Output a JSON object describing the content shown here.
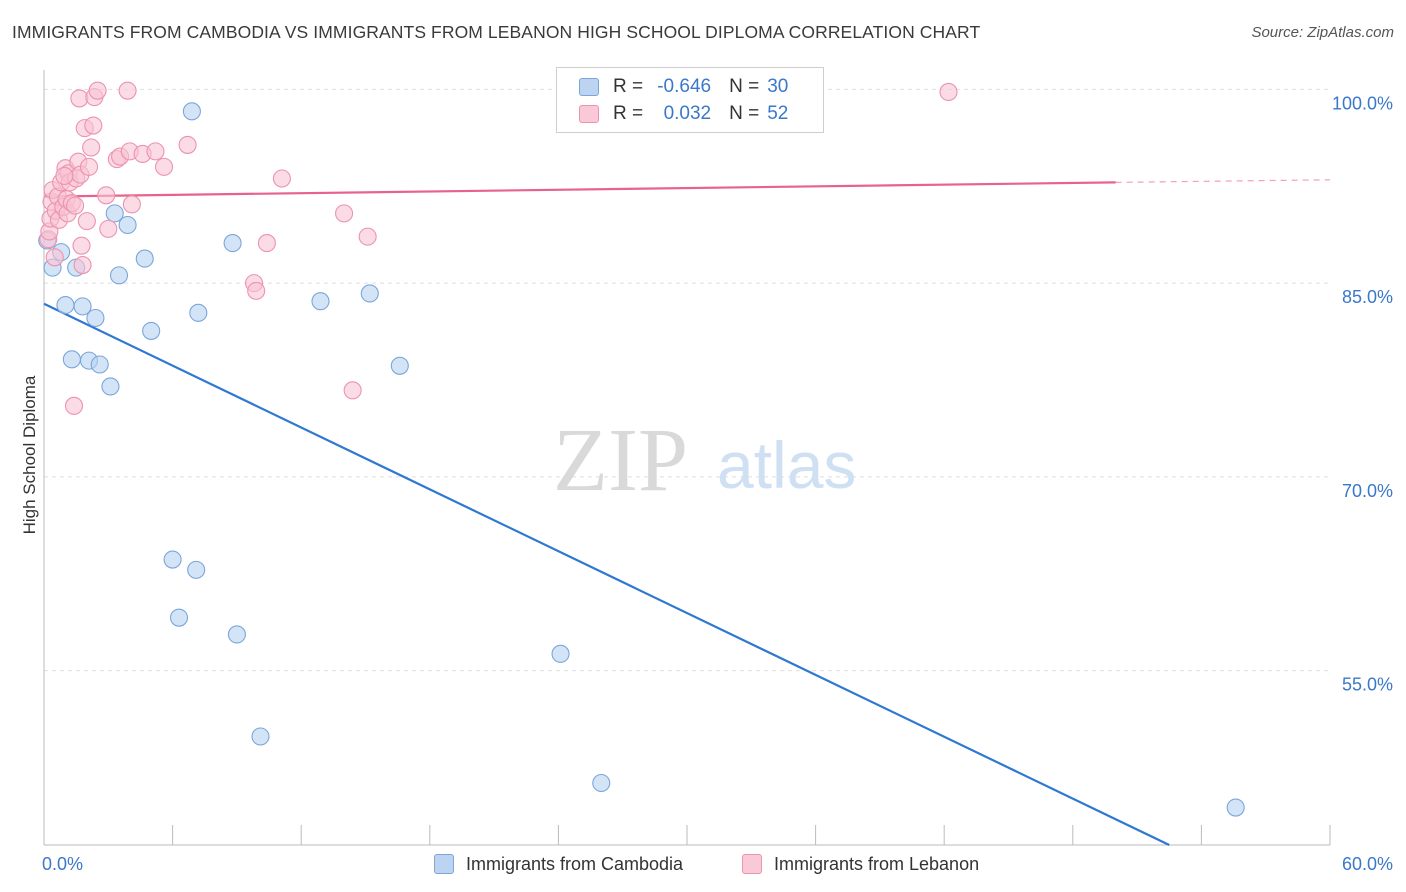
{
  "header": {
    "title": "IMMIGRANTS FROM CAMBODIA VS IMMIGRANTS FROM LEBANON HIGH SCHOOL DIPLOMA CORRELATION CHART",
    "source": "Source: ZipAtlas.com"
  },
  "watermark": {
    "zip": "ZIP",
    "atlas": "atlas"
  },
  "legend": {
    "rows": [
      {
        "r_label": "R =",
        "r_value": "-0.646",
        "n_label": "N =",
        "n_value": "30",
        "color": "#a9c8ef"
      },
      {
        "r_label": "R =",
        "r_value": "0.032",
        "n_label": "N =",
        "n_value": "52",
        "color": "#f6b8cb"
      }
    ]
  },
  "colors": {
    "blue_fill": "#b8d2f1",
    "blue_stroke": "#7aa6dc",
    "blue_line": "#2f78d1",
    "pink_fill": "#f8c3d3",
    "pink_stroke": "#ec93ae",
    "pink_line": "#e8638b",
    "axis_label": "#3a78c9",
    "grid": "#dedede"
  },
  "chart_data": {
    "type": "scatter",
    "title": "IMMIGRANTS FROM CAMBODIA VS IMMIGRANTS FROM LEBANON HIGH SCHOOL DIPLOMA CORRELATION CHART",
    "xlabel": "",
    "ylabel": "High School Diploma",
    "xlim": [
      0,
      60
    ],
    "ylim": [
      41.5,
      101.5
    ],
    "x_tick_labels": [
      "0.0%",
      "60.0%"
    ],
    "y_ticks": [
      55,
      70,
      85,
      100
    ],
    "y_tick_labels": [
      "55.0%",
      "70.0%",
      "85.0%",
      "100.0%"
    ],
    "grid": true,
    "legend_position": "bottom",
    "series": [
      {
        "name": "Immigrants from Cambodia",
        "color": "#7aa6dc",
        "points": [
          {
            "x": 0.15,
            "y": 88.3
          },
          {
            "x": 0.4,
            "y": 86.2
          },
          {
            "x": 0.8,
            "y": 87.4
          },
          {
            "x": 1.0,
            "y": 83.3
          },
          {
            "x": 1.3,
            "y": 79.1
          },
          {
            "x": 1.5,
            "y": 86.2
          },
          {
            "x": 1.8,
            "y": 83.2
          },
          {
            "x": 2.1,
            "y": 79.0
          },
          {
            "x": 2.4,
            "y": 82.3
          },
          {
            "x": 2.6,
            "y": 78.7
          },
          {
            "x": 3.1,
            "y": 77.0
          },
          {
            "x": 3.3,
            "y": 90.4
          },
          {
            "x": 3.5,
            "y": 85.6
          },
          {
            "x": 3.9,
            "y": 89.5
          },
          {
            "x": 4.7,
            "y": 86.9
          },
          {
            "x": 5.0,
            "y": 81.3
          },
          {
            "x": 6.0,
            "y": 63.6
          },
          {
            "x": 6.3,
            "y": 59.1
          },
          {
            "x": 6.9,
            "y": 98.3
          },
          {
            "x": 7.1,
            "y": 62.8
          },
          {
            "x": 7.2,
            "y": 82.7
          },
          {
            "x": 8.8,
            "y": 88.1
          },
          {
            "x": 9.0,
            "y": 57.8
          },
          {
            "x": 10.1,
            "y": 49.9
          },
          {
            "x": 12.9,
            "y": 83.6
          },
          {
            "x": 15.2,
            "y": 84.2
          },
          {
            "x": 16.6,
            "y": 78.6
          },
          {
            "x": 24.1,
            "y": 56.3
          },
          {
            "x": 26.0,
            "y": 46.3
          },
          {
            "x": 55.6,
            "y": 44.4
          }
        ],
        "trend": {
          "x": [
            0,
            52.5
          ],
          "y": [
            83.4,
            41.5
          ]
        }
      },
      {
        "name": "Immigrants from Lebanon",
        "color": "#ec93ae",
        "points": [
          {
            "x": 0.2,
            "y": 88.4
          },
          {
            "x": 0.25,
            "y": 89.0
          },
          {
            "x": 0.3,
            "y": 90.0
          },
          {
            "x": 0.35,
            "y": 91.3
          },
          {
            "x": 0.4,
            "y": 92.2
          },
          {
            "x": 0.5,
            "y": 87.0
          },
          {
            "x": 0.55,
            "y": 90.6
          },
          {
            "x": 0.65,
            "y": 91.7
          },
          {
            "x": 0.7,
            "y": 89.9
          },
          {
            "x": 0.8,
            "y": 92.8
          },
          {
            "x": 0.9,
            "y": 90.9
          },
          {
            "x": 1.0,
            "y": 93.9
          },
          {
            "x": 1.05,
            "y": 91.5
          },
          {
            "x": 1.1,
            "y": 90.4
          },
          {
            "x": 1.15,
            "y": 93.5
          },
          {
            "x": 1.2,
            "y": 92.8
          },
          {
            "x": 1.3,
            "y": 91.2
          },
          {
            "x": 1.4,
            "y": 75.5
          },
          {
            "x": 1.5,
            "y": 93.1
          },
          {
            "x": 1.6,
            "y": 94.4
          },
          {
            "x": 1.65,
            "y": 99.3
          },
          {
            "x": 1.7,
            "y": 93.4
          },
          {
            "x": 1.75,
            "y": 87.9
          },
          {
            "x": 1.8,
            "y": 86.4
          },
          {
            "x": 1.9,
            "y": 97.0
          },
          {
            "x": 2.0,
            "y": 89.8
          },
          {
            "x": 2.1,
            "y": 94.0
          },
          {
            "x": 2.2,
            "y": 95.5
          },
          {
            "x": 2.3,
            "y": 97.2
          },
          {
            "x": 2.35,
            "y": 99.4
          },
          {
            "x": 2.5,
            "y": 99.9
          },
          {
            "x": 2.9,
            "y": 91.8
          },
          {
            "x": 3.0,
            "y": 89.2
          },
          {
            "x": 3.4,
            "y": 94.6
          },
          {
            "x": 3.55,
            "y": 94.8
          },
          {
            "x": 3.9,
            "y": 99.9
          },
          {
            "x": 4.0,
            "y": 95.2
          },
          {
            "x": 4.1,
            "y": 91.1
          },
          {
            "x": 4.6,
            "y": 95.0
          },
          {
            "x": 5.2,
            "y": 95.2
          },
          {
            "x": 5.6,
            "y": 94.0
          },
          {
            "x": 6.7,
            "y": 95.7
          },
          {
            "x": 9.8,
            "y": 85.0
          },
          {
            "x": 9.9,
            "y": 84.4
          },
          {
            "x": 10.4,
            "y": 88.1
          },
          {
            "x": 11.1,
            "y": 93.1
          },
          {
            "x": 14.0,
            "y": 90.4
          },
          {
            "x": 14.4,
            "y": 76.7
          },
          {
            "x": 15.1,
            "y": 88.6
          },
          {
            "x": 42.2,
            "y": 99.8
          },
          {
            "x": 1.45,
            "y": 91.0
          },
          {
            "x": 0.95,
            "y": 93.3
          }
        ],
        "trend": {
          "x": [
            0,
            50
          ],
          "y": [
            91.7,
            92.8
          ]
        },
        "trend_dashed": {
          "x": [
            50,
            60
          ],
          "y": [
            92.8,
            93.0
          ]
        }
      }
    ]
  }
}
